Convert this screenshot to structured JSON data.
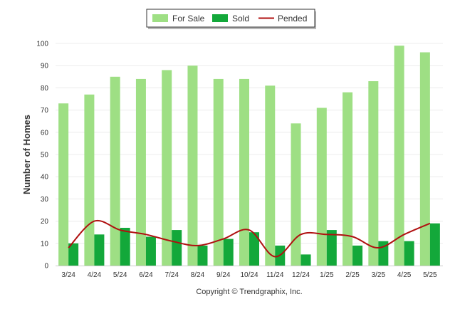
{
  "chart_data": {
    "type": "bar",
    "categories": [
      "3/24",
      "4/24",
      "5/24",
      "6/24",
      "7/24",
      "8/24",
      "9/24",
      "10/24",
      "11/24",
      "12/24",
      "1/25",
      "2/25",
      "3/25",
      "4/25",
      "5/25"
    ],
    "series": [
      {
        "name": "For Sale",
        "type": "bar",
        "color": "#9edf84",
        "values": [
          73,
          77,
          85,
          84,
          88,
          90,
          84,
          84,
          81,
          64,
          71,
          78,
          83,
          99,
          96
        ]
      },
      {
        "name": "Sold",
        "type": "bar",
        "color": "#13a83a",
        "values": [
          10,
          14,
          17,
          13,
          16,
          9,
          12,
          15,
          9,
          5,
          16,
          9,
          11,
          11,
          19
        ]
      },
      {
        "name": "Pended",
        "type": "line",
        "color": "#b01010",
        "values": [
          8,
          20,
          16,
          14,
          11,
          9,
          12,
          16,
          4,
          14,
          14,
          13,
          8,
          14,
          19
        ]
      }
    ],
    "ylabel": "Number of Homes",
    "xlabel": "",
    "ylim": [
      0,
      100
    ],
    "yticks": [
      0,
      10,
      20,
      30,
      40,
      50,
      60,
      70,
      80,
      90,
      100
    ],
    "grid": true,
    "legend_position": "top-center"
  },
  "footer": {
    "credit": "Copyright © Trendgraphix, Inc."
  }
}
